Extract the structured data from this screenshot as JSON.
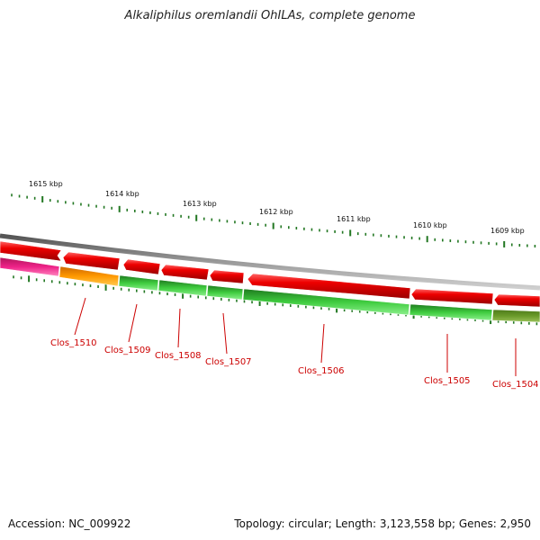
{
  "title": "Alkaliphilus oremlandii OhILAs, complete genome",
  "accession": "Accession: NC_009922",
  "summary": "Topology: circular; Length: 3,123,558 bp; Genes: 2,950",
  "colors": {
    "forward_strand": "#e60000",
    "reverse_green": "#33bb33",
    "orange": "#ff9900",
    "magenta": "#ee2288",
    "olive": "#6a9a2a",
    "tick": "#227722",
    "label": "#cc0000"
  },
  "scale": [
    {
      "label": "1615 kbp"
    },
    {
      "label": "1614 kbp"
    },
    {
      "label": "1613 kbp"
    },
    {
      "label": "1612 kbp"
    },
    {
      "label": "1611 kbp"
    },
    {
      "label": "1610 kbp"
    },
    {
      "label": "1609 kbp"
    }
  ],
  "genes": [
    {
      "label": "Clos_1510"
    },
    {
      "label": "Clos_1509"
    },
    {
      "label": "Clos_1508"
    },
    {
      "label": "Clos_1507"
    },
    {
      "label": "Clos_1506"
    },
    {
      "label": "Clos_1505"
    },
    {
      "label": "Clos_1504"
    }
  ]
}
